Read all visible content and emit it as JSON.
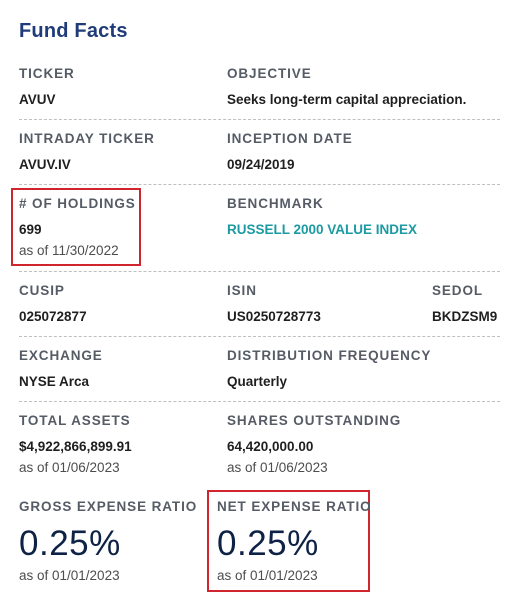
{
  "title": "Fund Facts",
  "ticker": {
    "label": "TICKER",
    "value": "AVUV"
  },
  "objective": {
    "label": "OBJECTIVE",
    "value": "Seeks long-term capital appreciation."
  },
  "intraday_ticker": {
    "label": "INTRADAY TICKER",
    "value": "AVUV.IV"
  },
  "inception_date": {
    "label": "INCEPTION DATE",
    "value": "09/24/2019"
  },
  "holdings": {
    "label": "# OF HOLDINGS",
    "value": "699",
    "as_of": "as of 11/30/2022"
  },
  "benchmark": {
    "label": "BENCHMARK",
    "value": "RUSSELL 2000 VALUE INDEX"
  },
  "cusip": {
    "label": "CUSIP",
    "value": "025072877"
  },
  "isin": {
    "label": "ISIN",
    "value": "US0250728773"
  },
  "sedol": {
    "label": "SEDOL",
    "value": "BKDZSM9"
  },
  "exchange": {
    "label": "EXCHANGE",
    "value": "NYSE Arca"
  },
  "distribution_frequency": {
    "label": "DISTRIBUTION FREQUENCY",
    "value": "Quarterly"
  },
  "total_assets": {
    "label": "TOTAL ASSETS",
    "value": "$4,922,866,899.91",
    "as_of": "as of 01/06/2023"
  },
  "shares_outstanding": {
    "label": "SHARES OUTSTANDING",
    "value": "64,420,000.00",
    "as_of": "as of 01/06/2023"
  },
  "gross_expense_ratio": {
    "label": "GROSS EXPENSE RATIO",
    "value": "0.25%",
    "as_of": "as of 01/01/2023"
  },
  "net_expense_ratio": {
    "label": "NET EXPENSE RATIO",
    "value": "0.25%",
    "as_of": "as of 01/01/2023"
  },
  "colors": {
    "title": "#1f3b7a",
    "link": "#1b9aa2",
    "highlight": "#d0252c",
    "big_value": "#0e2246"
  }
}
